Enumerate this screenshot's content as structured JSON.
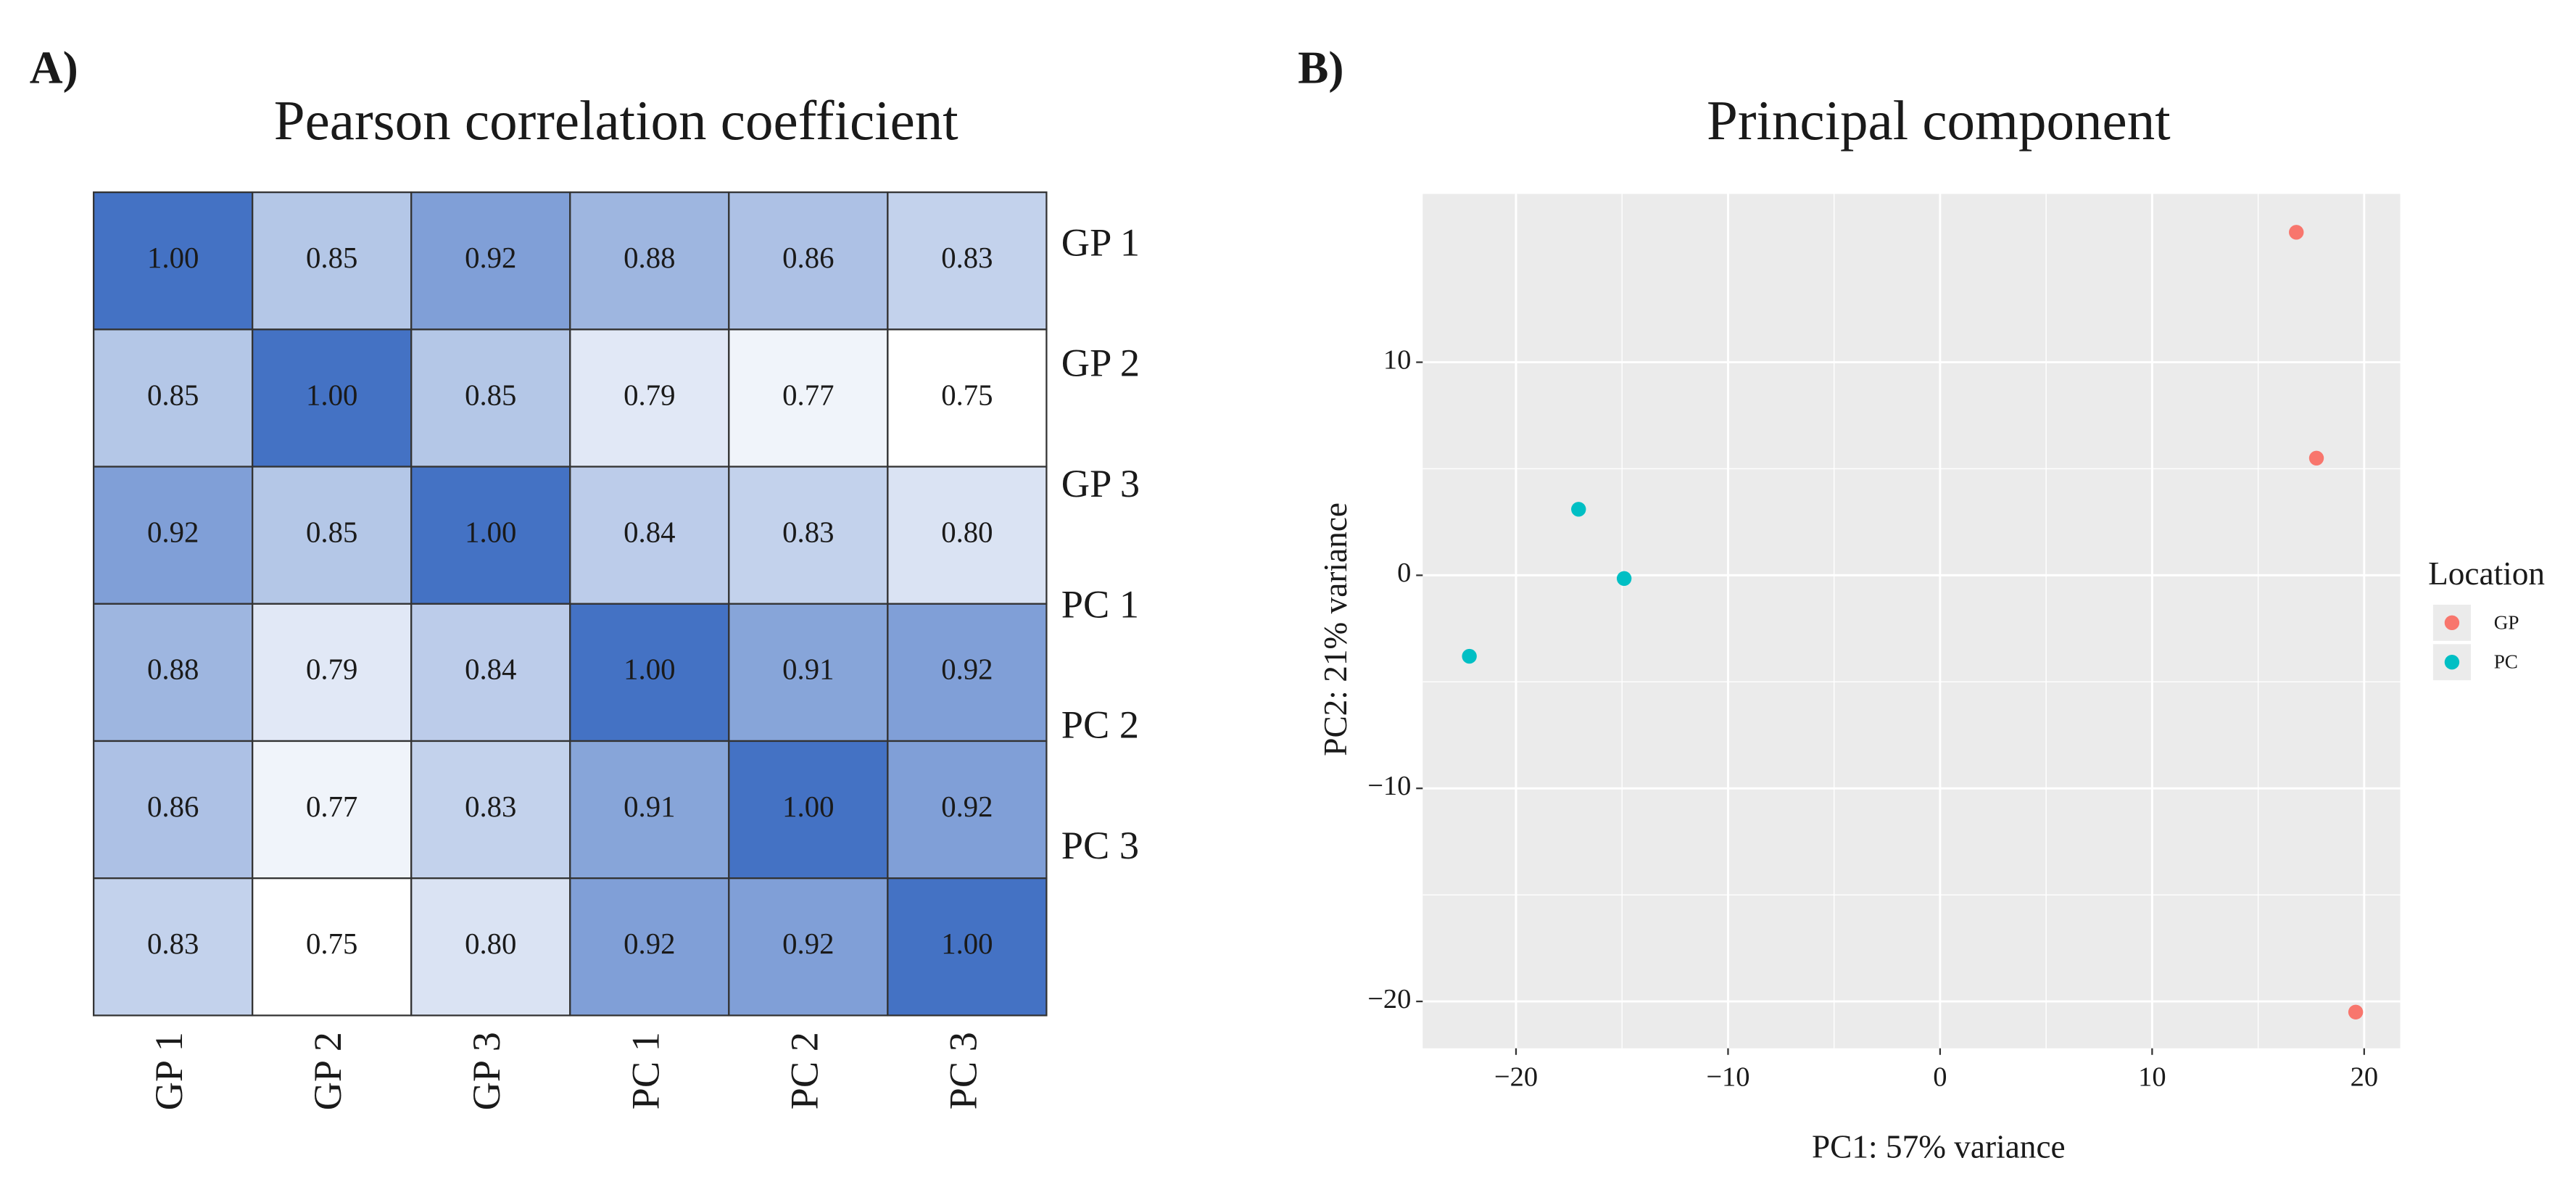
{
  "chart_data": [
    {
      "type": "heatmap",
      "panel_label": "A)",
      "title": "Pearson correlation coefficient",
      "rows": [
        "GP 1",
        "GP 2",
        "GP 3",
        "PC 1",
        "PC 2",
        "PC 3"
      ],
      "columns": [
        "GP 1",
        "GP 2",
        "GP 3",
        "PC 1",
        "PC 2",
        "PC 3"
      ],
      "values": [
        [
          1.0,
          0.85,
          0.92,
          0.88,
          0.86,
          0.83
        ],
        [
          0.85,
          1.0,
          0.85,
          0.79,
          0.77,
          0.75
        ],
        [
          0.92,
          0.85,
          1.0,
          0.84,
          0.83,
          0.8
        ],
        [
          0.88,
          0.79,
          0.84,
          1.0,
          0.91,
          0.92
        ],
        [
          0.86,
          0.77,
          0.83,
          0.91,
          1.0,
          0.92
        ],
        [
          0.83,
          0.75,
          0.8,
          0.92,
          0.92,
          1.0
        ]
      ],
      "value_labels": [
        [
          "1.00",
          "0.85",
          "0.92",
          "0.88",
          "0.86",
          "0.83"
        ],
        [
          "0.85",
          "1.00",
          "0.85",
          "0.79",
          "0.77",
          "0.75"
        ],
        [
          "0.92",
          "0.85",
          "1.00",
          "0.84",
          "0.83",
          "0.80"
        ],
        [
          "0.88",
          "0.79",
          "0.84",
          "1.00",
          "0.91",
          "0.92"
        ],
        [
          "0.86",
          "0.77",
          "0.83",
          "0.91",
          "1.00",
          "0.92"
        ],
        [
          "0.83",
          "0.75",
          "0.80",
          "0.92",
          "0.92",
          "1.00"
        ]
      ],
      "colors": [
        "#ffffff",
        "#4472c4"
      ]
    },
    {
      "type": "scatter",
      "panel_label": "B)",
      "title": "Principal component",
      "xlabel": "PC1: 57% variance",
      "ylabel": "PC2: 21% variance",
      "xlim": [
        -24.4,
        21.7
      ],
      "ylim": [
        -22.2,
        17.9
      ],
      "xticks": [
        {
          "value": -20,
          "label": "−20"
        },
        {
          "value": -10,
          "label": "−10"
        },
        0,
        10,
        20
      ],
      "yticks": [
        {
          "value": -20,
          "label": "−20"
        },
        {
          "value": -10,
          "label": "−10"
        },
        0,
        10
      ],
      "grid": true,
      "legend_title": "Location",
      "legend_position": "right",
      "series": [
        {
          "name": "GP",
          "color": "#f8766d",
          "x": [
            16.8,
            17.75,
            19.6
          ],
          "y": [
            16.1,
            5.5,
            -20.5
          ]
        },
        {
          "name": "PC",
          "color": "#00bfc4",
          "x": [
            -22.2,
            -17.05,
            -14.9
          ],
          "y": [
            -3.8,
            3.1,
            -0.15
          ]
        }
      ]
    }
  ]
}
